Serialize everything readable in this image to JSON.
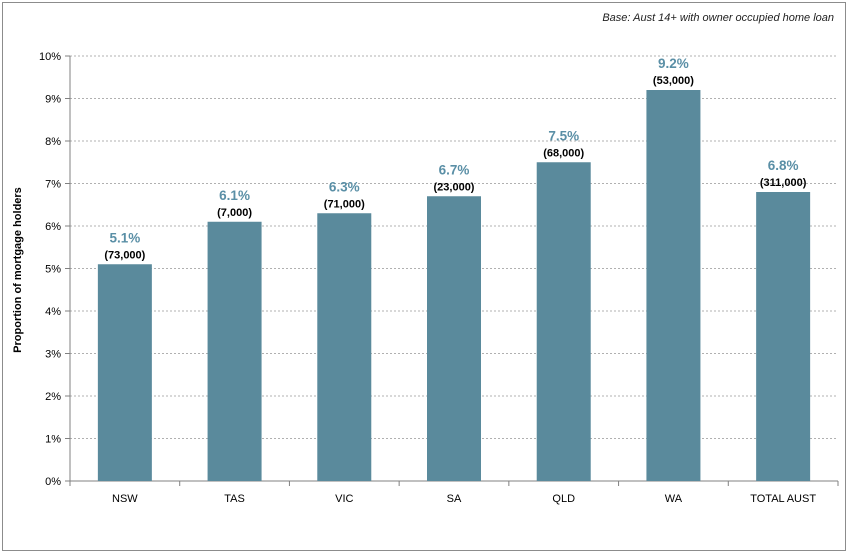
{
  "note": "Base: Aust 14+ with owner occupied home loan",
  "chart_data": {
    "type": "bar",
    "ylabel": "Proportion of mortgage holders",
    "ylim": [
      0,
      10
    ],
    "yticks": [
      "0%",
      "1%",
      "2%",
      "3%",
      "4%",
      "5%",
      "6%",
      "7%",
      "8%",
      "9%",
      "10%"
    ],
    "categories": [
      "NSW",
      "TAS",
      "VIC",
      "SA",
      "QLD",
      "WA",
      "TOTAL AUST"
    ],
    "values": [
      5.1,
      6.1,
      6.3,
      6.7,
      7.5,
      9.2,
      6.8
    ],
    "value_labels": [
      "5.1%",
      "6.1%",
      "6.3%",
      "6.7%",
      "7.5%",
      "9.2%",
      "6.8%"
    ],
    "count_labels": [
      "(73,000)",
      "(7,000)",
      "(71,000)",
      "(23,000)",
      "(68,000)",
      "(53,000)",
      "(311,000)"
    ],
    "grid": true,
    "colors": {
      "bar": "#5a8a9c",
      "value_label": "#5a8fa6",
      "grid": "#b0b0b0"
    }
  }
}
